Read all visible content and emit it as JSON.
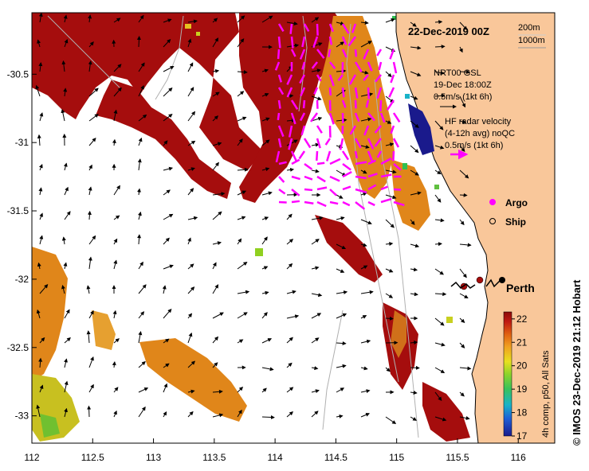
{
  "map": {
    "date_title": "22-Dec-2019 00Z",
    "contour_200": "200m",
    "contour_1000": "1000m",
    "gsl_line1": "NRT00 GSL",
    "gsl_line2": "19-Dec 18:00Z",
    "gsl_line3": "0.5m/s (1kt 6h)",
    "hf_line1": "HF radar velocity",
    "hf_line2": "(4-12h avg) noQC",
    "hf_line3": "0.5m/s (1kt 6h)",
    "argo_label": "Argo",
    "ship_label": "Ship",
    "city_label": "Perth",
    "colorbar_title": "4h comp, p50, All Sats",
    "credit": "© IMOS 23-Dec-2019 21:12 Hobart"
  },
  "axes": {
    "x_ticks": [
      "112",
      "112.5",
      "113",
      "113.5",
      "114",
      "114.5",
      "115",
      "115.5",
      "116"
    ],
    "y_ticks": [
      "-30.5",
      "-31",
      "-31.5",
      "-32",
      "-32.5",
      "-33"
    ],
    "lon_range": [
      112,
      116.3
    ],
    "lat_range": [
      -33.2,
      -30.05
    ]
  },
  "colorbar": {
    "ticks": [
      "22",
      "21",
      "20",
      "19",
      "18",
      "17"
    ],
    "range": [
      17,
      22.3
    ]
  },
  "colors": {
    "land": "#f9c79a",
    "coast": "#000000",
    "hf_arrow": "#ff00ff",
    "warm_sst": "#a50d0d",
    "mid_sst": "#e0861a"
  },
  "markers": {
    "city": {
      "name": "Perth",
      "lon": 115.86,
      "lat": -31.95
    }
  }
}
